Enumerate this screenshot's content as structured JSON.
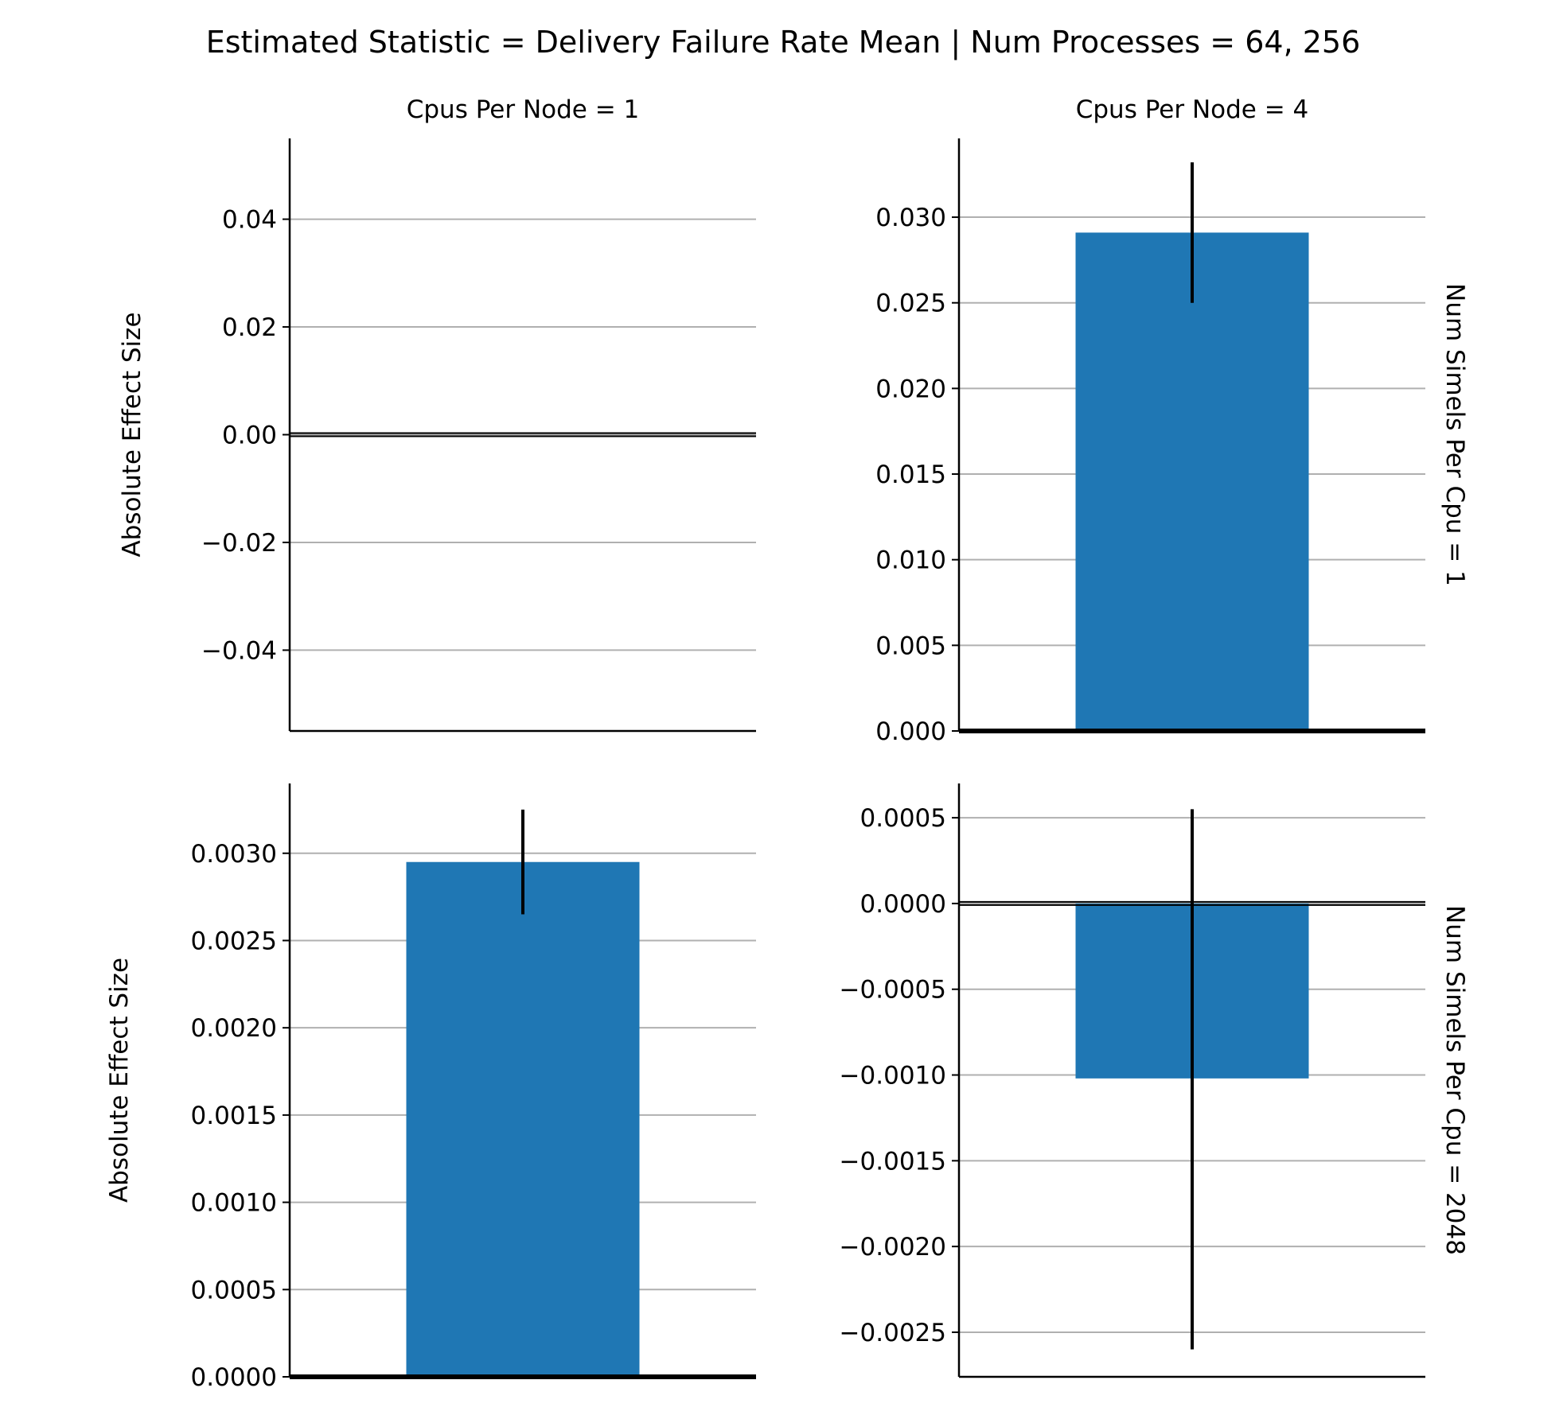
{
  "suptitle": "Estimated Statistic = Delivery Failure Rate Mean | Num Processes = 64, 256",
  "colors": {
    "bar": "#1f77b4",
    "errorbar": "#000000",
    "grid": "#b0b0b0",
    "axis": "#000000"
  },
  "chart_data": [
    {
      "type": "bar",
      "col_title": "Cpus Per Node = 1",
      "row_label": "",
      "ylabel": "Absolute Effect Size",
      "ylim": [
        -0.055,
        0.055
      ],
      "yticks": [
        -0.04,
        -0.02,
        0.0,
        0.02,
        0.04
      ],
      "ytick_labels": [
        "−0.04",
        "−0.02",
        "0.00",
        "0.02",
        "0.04"
      ],
      "value": null,
      "error_low": null,
      "error_high": null,
      "grid": true
    },
    {
      "type": "bar",
      "col_title": "Cpus Per Node = 4",
      "row_label": "Num Simels Per Cpu = 1",
      "ylabel": "",
      "ylim": [
        0.0,
        0.0346
      ],
      "yticks": [
        0.0,
        0.005,
        0.01,
        0.015,
        0.02,
        0.025,
        0.03
      ],
      "ytick_labels": [
        "0.000",
        "0.005",
        "0.010",
        "0.015",
        "0.020",
        "0.025",
        "0.030"
      ],
      "value": 0.0291,
      "error_low": 0.025,
      "error_high": 0.0332,
      "grid": true
    },
    {
      "type": "bar",
      "col_title": "",
      "row_label": "",
      "ylabel": "Absolute Effect Size",
      "ylim": [
        0.0,
        0.0034
      ],
      "yticks": [
        0.0,
        0.0005,
        0.001,
        0.0015,
        0.002,
        0.0025,
        0.003
      ],
      "ytick_labels": [
        "0.0000",
        "0.0005",
        "0.0010",
        "0.0015",
        "0.0020",
        "0.0025",
        "0.0030"
      ],
      "value": 0.00295,
      "error_low": 0.00265,
      "error_high": 0.00325,
      "grid": true
    },
    {
      "type": "bar",
      "col_title": "",
      "row_label": "Num Simels Per Cpu = 2048",
      "ylabel": "",
      "ylim": [
        -0.00276,
        0.0007
      ],
      "yticks": [
        -0.0025,
        -0.002,
        -0.0015,
        -0.001,
        -0.0005,
        0.0,
        0.0005
      ],
      "ytick_labels": [
        "−0.0025",
        "−0.0020",
        "−0.0015",
        "−0.0010",
        "−0.0005",
        "0.0000",
        "0.0005"
      ],
      "value": -0.00102,
      "error_low": -0.0026,
      "error_high": 0.00055,
      "grid": true
    }
  ]
}
